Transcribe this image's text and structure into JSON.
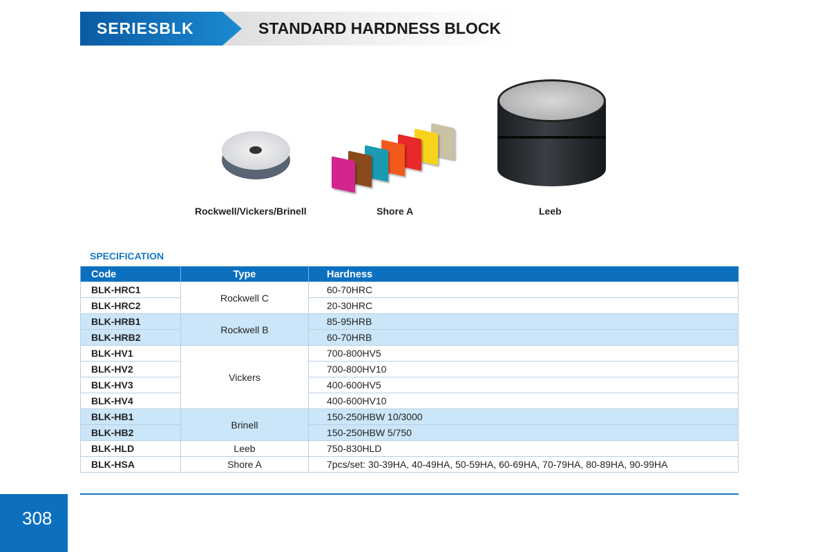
{
  "header": {
    "series": "SERIESBLK",
    "title": "STANDARD HARDNESS BLOCK"
  },
  "products": [
    {
      "caption": "Rockwell/Vickers/Brinell"
    },
    {
      "caption": "Shore A"
    },
    {
      "caption": "Leeb"
    }
  ],
  "shore_colors": [
    "#d4258f",
    "#8b4a1c",
    "#1a9bb0",
    "#f2591c",
    "#e8282a",
    "#f7d41b",
    "#c9c2a6"
  ],
  "spec": {
    "heading": "SPECIFICATION",
    "columns": [
      "Code",
      "Type",
      "Hardness"
    ],
    "rows": [
      {
        "code": "BLK-HRC1",
        "type": "Rockwell C",
        "hardness": "60-70HRC"
      },
      {
        "code": "BLK-HRC2",
        "type": "Rockwell C",
        "hardness": "20-30HRC"
      },
      {
        "code": "BLK-HRB1",
        "type": "Rockwell B",
        "hardness": "85-95HRB"
      },
      {
        "code": "BLK-HRB2",
        "type": "Rockwell B",
        "hardness": "60-70HRB"
      },
      {
        "code": "BLK-HV1",
        "type": "Vickers",
        "hardness": "700-800HV5"
      },
      {
        "code": "BLK-HV2",
        "type": "Vickers",
        "hardness": "700-800HV10"
      },
      {
        "code": "BLK-HV3",
        "type": "Vickers",
        "hardness": "400-600HV5"
      },
      {
        "code": "BLK-HV4",
        "type": "Vickers",
        "hardness": "400-600HV10"
      },
      {
        "code": "BLK-HB1",
        "type": "Brinell",
        "hardness": "150-250HBW 10/3000"
      },
      {
        "code": "BLK-HB2",
        "type": "Brinell",
        "hardness": "150-250HBW 5/750"
      },
      {
        "code": "BLK-HLD",
        "type": "Leeb",
        "hardness": "750-830HLD"
      },
      {
        "code": "BLK-HSA",
        "type": "Shore A",
        "hardness": "7pcs/set: 30-39HA,  40-49HA,  50-59HA,  60-69HA,  70-79HA,  80-89HA,  90-99HA"
      }
    ]
  },
  "page_number": "308"
}
